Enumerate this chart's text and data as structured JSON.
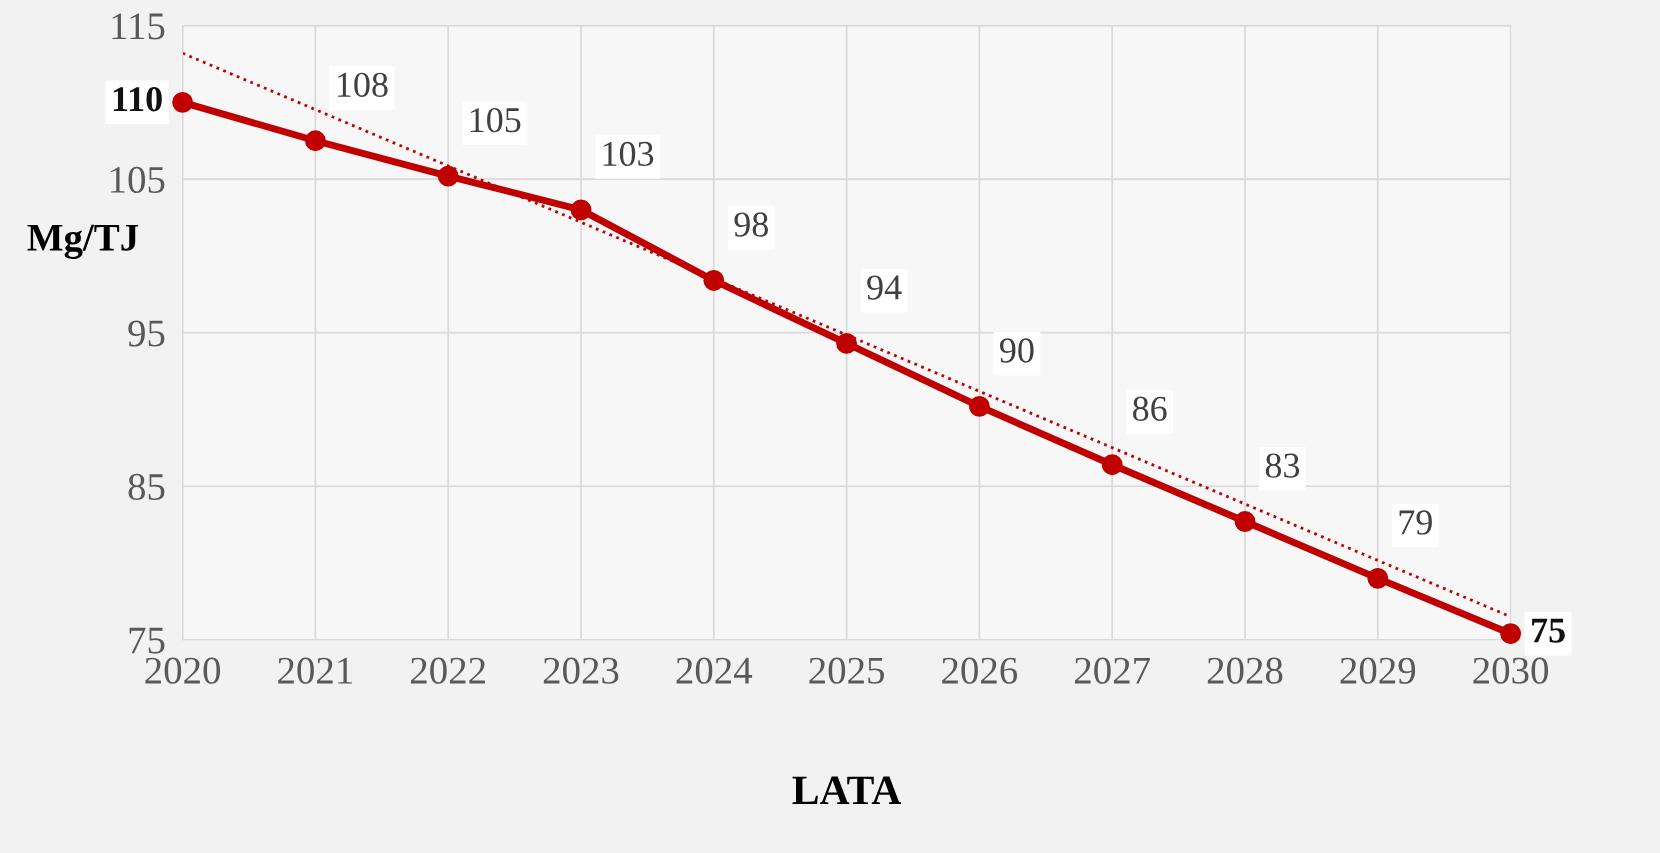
{
  "chart_data": {
    "type": "line",
    "xlabel": "LATA",
    "ylabel": "Mg/TJ",
    "x": [
      2020,
      2021,
      2022,
      2023,
      2024,
      2025,
      2026,
      2027,
      2028,
      2029,
      2030
    ],
    "series": [
      {
        "color": "#c00000",
        "values": [
          110.0,
          107.5,
          105.2,
          103.0,
          98.4,
          94.3,
          90.2,
          86.4,
          82.7,
          79.0,
          75.4
        ],
        "value_labels": [
          "110",
          "108",
          "105",
          "103",
          "98",
          "94",
          "90",
          "86",
          "83",
          "79",
          "75"
        ],
        "marker": "circle",
        "line_style": "solid"
      },
      {
        "type": "line",
        "color": "#c00000",
        "x": [
          2020,
          2030
        ],
        "values": [
          113.2,
          76.5
        ],
        "marker": "none",
        "line_style": "dotted"
      }
    ],
    "xlim": [
      2020,
      2030
    ],
    "xticks": [
      2020,
      2021,
      2022,
      2023,
      2024,
      2025,
      2026,
      2027,
      2028,
      2029,
      2030
    ],
    "ylim": [
      75,
      115
    ],
    "yticks": [
      75,
      85,
      95,
      105,
      115
    ],
    "grid": true
  }
}
